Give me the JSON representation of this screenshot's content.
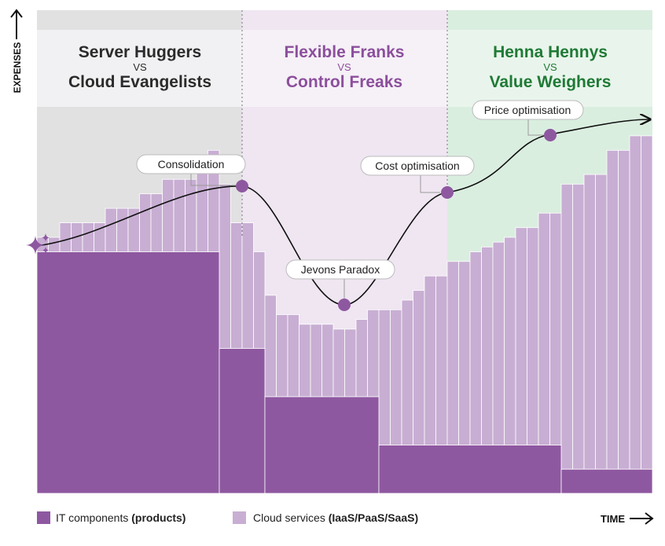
{
  "axis": {
    "y_label": "EXPENSES",
    "x_label": "TIME"
  },
  "eras": [
    {
      "top": "Server Huggers",
      "vs": "VS",
      "bottom": "Cloud Evangelists",
      "color": "#2b2b2b",
      "band_color": "#e1e1e1",
      "header_color": "#f1f1f3"
    },
    {
      "top": "Flexible Franks",
      "vs": "VS",
      "bottom": "Control Freaks",
      "color": "#8b4f9c",
      "band_color": "#efe6f2",
      "header_color": "#f6f0f7"
    },
    {
      "top": "Henna Hennys",
      "vs": "VS",
      "bottom": "Value Weighers",
      "color": "#1f7a35",
      "band_color": "#daeee0",
      "header_color": "#e9f5ec"
    }
  ],
  "callouts": [
    {
      "label": "Consolidation"
    },
    {
      "label": "Jevons Paradox"
    },
    {
      "label": "Cost optimisation"
    },
    {
      "label": "Price optimisation"
    }
  ],
  "legend": [
    {
      "text": "IT components ",
      "bold": "(products)",
      "color": "#8e58a0"
    },
    {
      "text": "Cloud services ",
      "bold": "(IaaS/PaaS/SaaS)",
      "color": "#c8aed3"
    }
  ],
  "colors": {
    "it_components": "#8e58a0",
    "cloud_services": "#c8aed3",
    "marker": "#8e58a0",
    "sparkle": "#8e58a0"
  },
  "chart_data": {
    "type": "bar",
    "stacked": true,
    "ylim": [
      0,
      100
    ],
    "series": [
      {
        "name": "IT components (products)",
        "values": [
          50,
          50,
          50,
          50,
          50,
          50,
          50,
          50,
          50,
          50,
          50,
          50,
          50,
          50,
          50,
          50,
          30,
          30,
          30,
          30,
          20,
          20,
          20,
          20,
          20,
          20,
          20,
          20,
          20,
          20,
          10,
          10,
          10,
          10,
          10,
          10,
          10,
          10,
          10,
          10,
          10,
          10,
          10,
          10,
          10,
          10,
          5,
          5,
          5,
          5,
          5,
          5,
          5,
          5
        ]
      },
      {
        "name": "Cloud services (IaaS/PaaS/SaaS)",
        "values": [
          3,
          3,
          6,
          6,
          6,
          6,
          9,
          9,
          9,
          12,
          12,
          15,
          15,
          15,
          18,
          21,
          34,
          26,
          26,
          20,
          21,
          17,
          17,
          15,
          15,
          15,
          14,
          14,
          16,
          18,
          28,
          28,
          30,
          32,
          35,
          35,
          38,
          38,
          40,
          41,
          42,
          43,
          45,
          45,
          48,
          48,
          59,
          59,
          61,
          61,
          66,
          66,
          69,
          69
        ]
      }
    ]
  }
}
